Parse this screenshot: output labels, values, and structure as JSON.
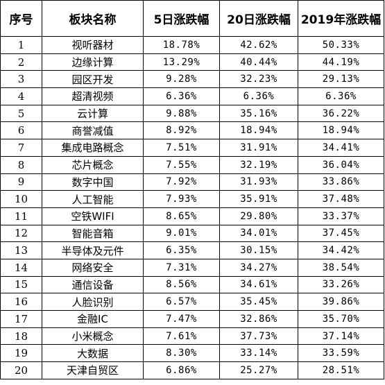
{
  "table": {
    "headers": [
      "序号",
      "板块名称",
      "5日涨跌幅",
      "20日涨跌幅",
      "2019年涨跌幅"
    ],
    "rows": [
      [
        "1",
        "视听器材",
        "18.78%",
        "42.62%",
        "50.33%"
      ],
      [
        "2",
        "边缘计算",
        "13.29%",
        "40.44%",
        "44.19%"
      ],
      [
        "3",
        "园区开发",
        "9.28%",
        "32.23%",
        "29.13%"
      ],
      [
        "4",
        "超清视频",
        "6.36%",
        "6.36%",
        "6.36%"
      ],
      [
        "5",
        "云计算",
        "9.88%",
        "35.16%",
        "36.22%"
      ],
      [
        "6",
        "商誉减值",
        "8.92%",
        "18.94%",
        "18.94%"
      ],
      [
        "7",
        "集成电路概念",
        "7.51%",
        "31.91%",
        "34.41%"
      ],
      [
        "8",
        "芯片概念",
        "7.55%",
        "32.19%",
        "36.04%"
      ],
      [
        "9",
        "数字中国",
        "7.92%",
        "31.93%",
        "33.86%"
      ],
      [
        "10",
        "人工智能",
        "7.93%",
        "35.91%",
        "37.48%"
      ],
      [
        "11",
        "空铁WIFI",
        "8.65%",
        "29.80%",
        "33.37%"
      ],
      [
        "12",
        "智能音箱",
        "9.01%",
        "34.01%",
        "37.45%"
      ],
      [
        "13",
        "半导体及元件",
        "6.35%",
        "30.15%",
        "34.42%"
      ],
      [
        "14",
        "网络安全",
        "7.31%",
        "34.27%",
        "38.54%"
      ],
      [
        "15",
        "通信设备",
        "8.56%",
        "34.61%",
        "33.26%"
      ],
      [
        "16",
        "人脸识别",
        "6.57%",
        "35.45%",
        "39.86%"
      ],
      [
        "17",
        "金融IC",
        "7.47%",
        "32.86%",
        "35.70%"
      ],
      [
        "18",
        "小米概念",
        "7.61%",
        "37.73%",
        "37.14%"
      ],
      [
        "19",
        "大数据",
        "8.30%",
        "33.14%",
        "33.59%"
      ],
      [
        "20",
        "天津自贸区",
        "6.86%",
        "25.27%",
        "28.51%"
      ]
    ]
  }
}
